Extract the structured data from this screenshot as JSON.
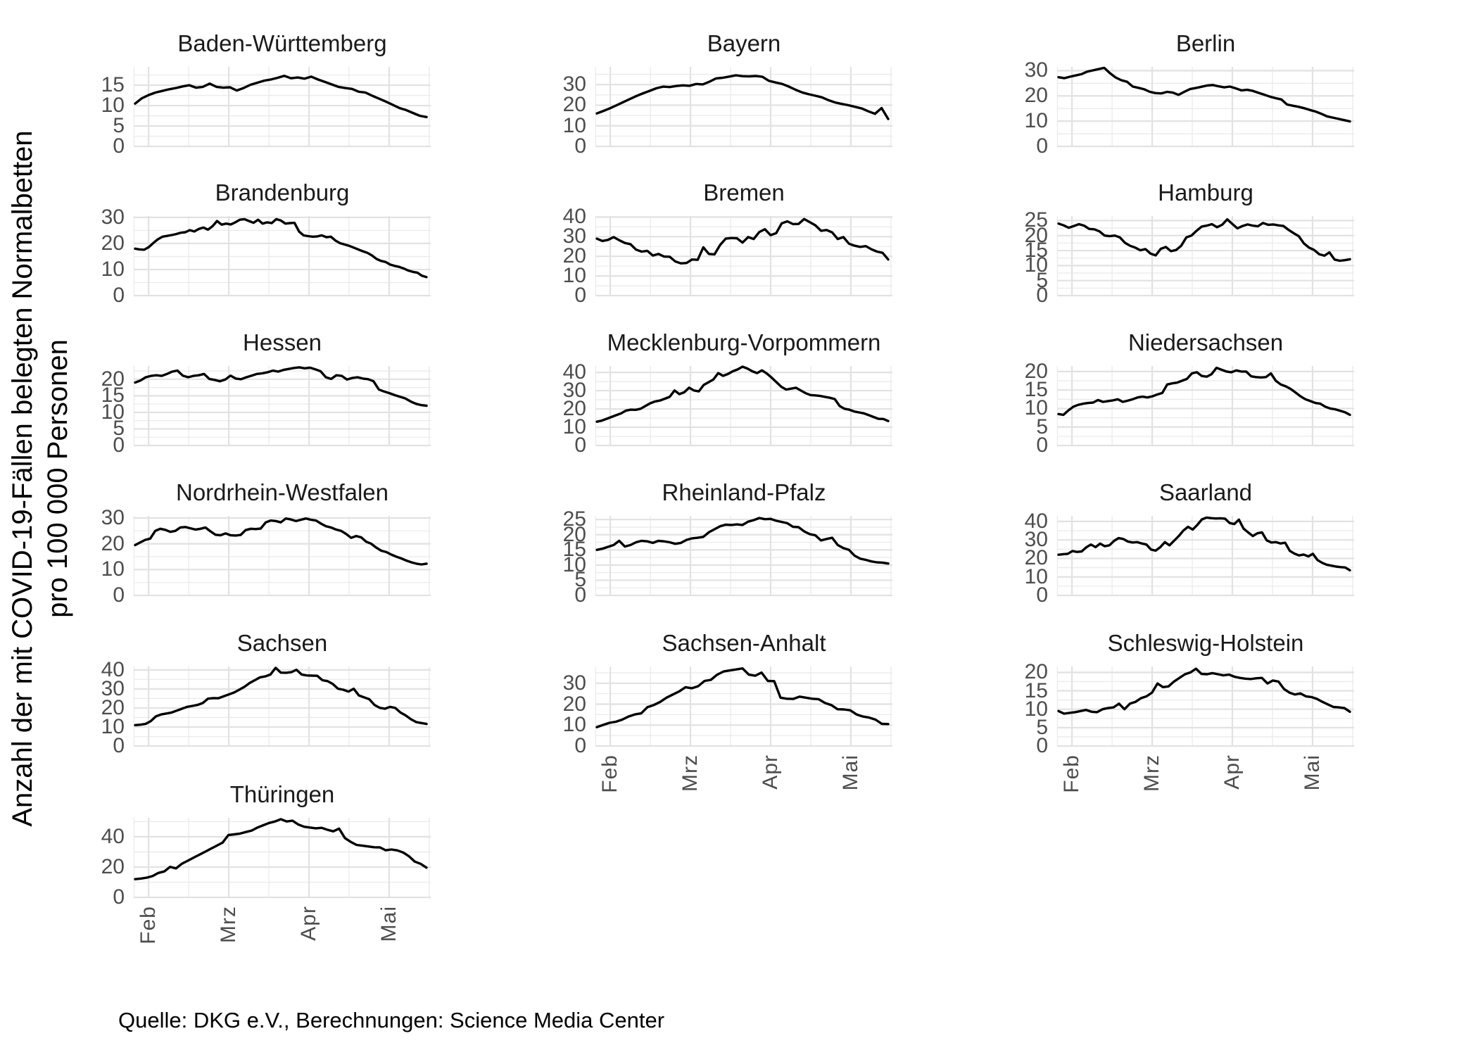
{
  "chart_data": {
    "type": "line",
    "layout": "facet_grid_3_columns",
    "ylabel_line1": "Anzahl der mit COVID-19-Fällen belegten Normalbetten",
    "ylabel_line2": "pro 100 000 Personen",
    "caption": "Quelle: DKG e.V., Berechnungen: Science Media Center",
    "x_tick_labels": [
      "Feb",
      "Mrz",
      "Apr",
      "Mai"
    ],
    "x_tick_pos": [
      0.05,
      0.32,
      0.59,
      0.86
    ],
    "x_minor_pos": [
      0.001,
      0.185,
      0.455,
      0.725,
      0.995
    ],
    "grid": "major_and_minor_light_gray",
    "legend": "none",
    "facets": [
      {
        "title": "Baden-Württemberg",
        "y_ticks": [
          0,
          5,
          10,
          15
        ],
        "y_max": 19.5,
        "values": [
          10.5,
          11.8,
          12.6,
          13.2,
          13.6,
          14.0,
          14.3,
          14.7,
          15.0,
          14.4,
          14.6,
          15.4,
          14.6,
          14.4,
          14.5,
          13.7,
          14.3,
          15.1,
          15.6,
          16.1,
          16.4,
          16.8,
          17.3,
          16.7,
          16.9,
          16.6,
          17.1,
          16.4,
          15.8,
          15.2,
          14.6,
          14.3,
          14.1,
          13.4,
          13.2,
          12.4,
          11.7,
          11.0,
          10.2,
          9.4,
          8.9,
          8.2,
          7.5,
          7.2
        ]
      },
      {
        "title": "Bayern",
        "y_ticks": [
          0,
          10,
          20,
          30
        ],
        "y_max": 38.6,
        "values": [
          16.0,
          17.2,
          18.5,
          20.0,
          21.5,
          23.0,
          24.5,
          25.8,
          27.0,
          28.2,
          29.0,
          28.8,
          29.3,
          29.6,
          29.4,
          30.3,
          30.1,
          31.4,
          33.0,
          33.3,
          33.9,
          34.5,
          34.1,
          34.0,
          34.2,
          33.8,
          31.8,
          31.0,
          30.3,
          29.0,
          27.5,
          26.2,
          25.3,
          24.6,
          23.8,
          22.4,
          21.3,
          20.6,
          20.0,
          19.2,
          18.4,
          17.0,
          15.8,
          18.6,
          13.3
        ]
      },
      {
        "title": "Berlin",
        "y_ticks": [
          0,
          10,
          20,
          30
        ],
        "y_max": 31.5,
        "values": [
          27.4,
          27.0,
          27.6,
          28.1,
          28.6,
          29.6,
          30.1,
          30.6,
          31.1,
          29.0,
          27.3,
          26.2,
          25.6,
          23.7,
          23.2,
          22.6,
          21.6,
          21.1,
          21.0,
          21.6,
          21.3,
          20.4,
          21.6,
          22.7,
          23.1,
          23.6,
          24.1,
          24.3,
          23.8,
          23.4,
          23.7,
          23.0,
          22.2,
          22.4,
          22.0,
          21.2,
          20.5,
          19.7,
          19.1,
          18.6,
          16.6,
          16.1,
          15.7,
          15.1,
          14.4,
          13.8,
          12.9,
          11.9,
          11.4,
          10.9,
          10.4,
          9.9
        ]
      },
      {
        "title": "Brandenburg",
        "y_ticks": [
          0,
          10,
          20,
          30
        ],
        "y_max": 30.5,
        "values": [
          18.0,
          17.7,
          17.6,
          18.6,
          20.2,
          21.6,
          22.6,
          22.9,
          23.2,
          23.6,
          24.1,
          24.3,
          25.1,
          24.6,
          25.6,
          26.1,
          25.3,
          26.6,
          28.6,
          27.2,
          27.6,
          27.3,
          28.1,
          29.1,
          29.3,
          28.6,
          27.9,
          29.1,
          27.6,
          28.1,
          27.8,
          29.3,
          28.8,
          27.6,
          27.8,
          27.9,
          24.6,
          23.1,
          22.8,
          22.6,
          22.7,
          23.1,
          22.4,
          22.6,
          21.1,
          20.1,
          19.6,
          19.1,
          18.4,
          17.7,
          17.0,
          16.4,
          15.4,
          14.1,
          13.3,
          12.9,
          11.9,
          11.4,
          11.0,
          10.4,
          9.6,
          9.1,
          8.8,
          7.6,
          7.1
        ]
      },
      {
        "title": "Bremen",
        "y_ticks": [
          0,
          10,
          20,
          30,
          40
        ],
        "y_max": 40.5,
        "values": [
          29.0,
          27.8,
          28.4,
          29.8,
          28.2,
          26.8,
          26.2,
          23.4,
          22.4,
          22.8,
          20.4,
          21.2,
          19.9,
          19.8,
          17.4,
          16.4,
          16.6,
          18.4,
          18.2,
          24.6,
          21.2,
          21.0,
          25.8,
          29.0,
          29.3,
          29.2,
          27.0,
          29.8,
          28.8,
          32.4,
          33.8,
          30.8,
          31.8,
          36.8,
          37.8,
          36.4,
          36.5,
          39.0,
          37.4,
          35.8,
          33.0,
          33.4,
          32.2,
          28.8,
          29.8,
          26.4,
          25.4,
          24.8,
          25.2,
          23.6,
          22.4,
          21.8,
          18.4
        ]
      },
      {
        "title": "Hamburg",
        "y_ticks": [
          0,
          5,
          10,
          15,
          20,
          25
        ],
        "y_max": 26.5,
        "values": [
          24.0,
          23.4,
          22.6,
          23.2,
          23.8,
          23.3,
          22.2,
          22.1,
          21.4,
          20.0,
          19.8,
          20.0,
          19.4,
          17.6,
          16.6,
          16.0,
          15.1,
          15.5,
          14.0,
          13.4,
          15.6,
          16.2,
          14.8,
          15.2,
          16.6,
          19.4,
          20.0,
          21.6,
          23.0,
          23.3,
          23.8,
          22.8,
          23.6,
          25.4,
          23.9,
          22.4,
          23.2,
          23.7,
          23.3,
          23.1,
          24.2,
          23.6,
          23.7,
          23.4,
          23.2,
          21.9,
          20.8,
          19.8,
          17.4,
          16.0,
          15.2,
          13.8,
          13.3,
          14.4,
          12.0,
          11.6,
          11.8,
          12.1
        ]
      },
      {
        "title": "Hessen",
        "y_ticks": [
          0,
          5,
          10,
          15,
          20
        ],
        "y_max": 24.0,
        "values": [
          19.0,
          19.6,
          20.6,
          21.0,
          21.2,
          21.0,
          21.6,
          22.3,
          22.6,
          21.1,
          20.6,
          21.0,
          21.2,
          21.6,
          20.1,
          19.8,
          19.4,
          19.9,
          21.1,
          20.2,
          20.0,
          20.6,
          21.1,
          21.6,
          21.8,
          22.1,
          22.6,
          22.3,
          22.8,
          23.1,
          23.4,
          23.6,
          23.3,
          23.5,
          23.0,
          22.4,
          20.6,
          20.1,
          21.2,
          21.0,
          19.9,
          20.4,
          20.6,
          20.2,
          20.0,
          19.4,
          16.9,
          16.3,
          15.8,
          15.2,
          14.7,
          14.2,
          13.3,
          12.6,
          12.2,
          12.0
        ]
      },
      {
        "title": "Mecklenburg-Vorpommern",
        "y_ticks": [
          0,
          10,
          20,
          30,
          40
        ],
        "y_max": 43.5,
        "values": [
          13.0,
          13.6,
          14.6,
          15.6,
          16.6,
          17.6,
          19.1,
          19.6,
          19.5,
          20.1,
          21.6,
          23.1,
          24.1,
          24.6,
          25.6,
          26.6,
          30.1,
          28.1,
          29.1,
          31.6,
          30.1,
          29.6,
          33.1,
          34.6,
          36.1,
          39.6,
          38.1,
          39.1,
          40.6,
          41.6,
          43.1,
          42.1,
          40.6,
          39.6,
          41.1,
          39.4,
          37.1,
          34.6,
          32.1,
          30.6,
          31.1,
          31.6,
          30.1,
          28.6,
          27.6,
          27.4,
          27.1,
          26.6,
          26.1,
          25.4,
          21.6,
          20.1,
          19.6,
          18.6,
          18.1,
          17.6,
          16.6,
          15.6,
          14.6,
          14.5,
          13.4
        ]
      },
      {
        "title": "Niedersachsen",
        "y_ticks": [
          0,
          5,
          10,
          15,
          20
        ],
        "y_max": 21.5,
        "values": [
          8.5,
          8.3,
          9.5,
          10.5,
          11.0,
          11.3,
          11.5,
          11.6,
          12.3,
          11.8,
          12.0,
          12.2,
          12.5,
          11.8,
          12.1,
          12.5,
          13.0,
          13.2,
          13.0,
          13.3,
          13.8,
          14.2,
          16.5,
          16.8,
          17.0,
          17.5,
          18.0,
          19.5,
          19.8,
          18.8,
          18.6,
          19.3,
          21.0,
          20.5,
          20.0,
          19.8,
          20.3,
          20.0,
          20.0,
          18.7,
          18.5,
          18.4,
          18.5,
          19.5,
          17.5,
          16.5,
          16.0,
          15.3,
          14.3,
          13.3,
          12.5,
          12.0,
          11.5,
          11.3,
          10.5,
          10.0,
          9.8,
          9.4,
          9.0,
          8.3
        ]
      },
      {
        "title": "Nordrhein-Westfalen",
        "y_ticks": [
          0,
          10,
          20,
          30
        ],
        "y_max": 30.8,
        "values": [
          19.5,
          20.5,
          21.5,
          22.0,
          25.0,
          25.8,
          25.4,
          24.6,
          25.0,
          26.3,
          26.5,
          26.0,
          25.5,
          25.8,
          26.3,
          24.8,
          23.5,
          23.3,
          24.0,
          23.3,
          23.2,
          23.4,
          25.3,
          25.8,
          25.7,
          25.9,
          28.3,
          29.0,
          28.8,
          28.3,
          29.8,
          29.4,
          28.8,
          29.3,
          29.8,
          29.3,
          29.0,
          27.8,
          26.8,
          26.3,
          25.5,
          25.0,
          23.8,
          22.3,
          23.0,
          22.5,
          20.8,
          20.0,
          18.5,
          17.3,
          16.8,
          15.8,
          15.0,
          14.3,
          13.5,
          12.8,
          12.3,
          12.0,
          12.3
        ]
      },
      {
        "title": "Rheinland-Pfalz",
        "y_ticks": [
          0,
          5,
          10,
          15,
          20,
          25
        ],
        "y_max": 26.2,
        "values": [
          15.0,
          15.4,
          16.0,
          16.6,
          18.0,
          16.1,
          16.6,
          17.5,
          18.0,
          17.8,
          17.3,
          18.0,
          17.8,
          17.5,
          17.0,
          17.3,
          18.3,
          18.8,
          19.0,
          19.3,
          20.8,
          21.8,
          22.8,
          23.3,
          23.2,
          23.4,
          23.2,
          24.3,
          24.8,
          25.5,
          25.1,
          25.2,
          24.6,
          24.2,
          23.8,
          22.6,
          22.5,
          21.1,
          20.2,
          19.8,
          18.1,
          18.6,
          19.0,
          16.6,
          15.6,
          15.0,
          13.1,
          12.1,
          11.7,
          11.2,
          10.9,
          10.8,
          10.5
        ]
      },
      {
        "title": "Saarland",
        "y_ticks": [
          0,
          10,
          20,
          30,
          40
        ],
        "y_max": 43.0,
        "values": [
          22.0,
          22.3,
          22.5,
          24.0,
          23.5,
          23.8,
          26.0,
          27.5,
          26.1,
          28.0,
          26.6,
          27.1,
          29.5,
          31.0,
          30.5,
          29.1,
          28.6,
          28.8,
          28.1,
          27.5,
          24.8,
          24.2,
          26.1,
          28.8,
          27.1,
          29.6,
          32.1,
          35.1,
          37.1,
          35.6,
          38.1,
          41.1,
          42.1,
          41.8,
          41.6,
          41.7,
          41.5,
          39.1,
          38.6,
          41.0,
          36.1,
          34.1,
          32.1,
          33.6,
          34.1,
          29.8,
          28.6,
          28.8,
          28.1,
          28.5,
          24.1,
          22.6,
          21.6,
          22.1,
          21.1,
          22.5,
          19.1,
          17.6,
          16.6,
          16.1,
          15.6,
          15.3,
          15.1,
          13.6
        ]
      },
      {
        "title": "Sachsen",
        "y_ticks": [
          0,
          10,
          20,
          30,
          40
        ],
        "y_max": 41.8,
        "values": [
          11.0,
          11.2,
          11.6,
          13.1,
          15.6,
          16.6,
          17.1,
          17.6,
          18.6,
          19.6,
          20.6,
          21.1,
          21.6,
          22.6,
          24.9,
          25.2,
          25.1,
          26.1,
          27.1,
          28.1,
          29.6,
          31.1,
          33.1,
          34.6,
          36.1,
          36.6,
          37.6,
          41.1,
          38.6,
          38.5,
          38.8,
          40.1,
          37.6,
          37.1,
          37.0,
          36.9,
          34.6,
          34.1,
          32.6,
          30.1,
          29.6,
          28.6,
          30.1,
          26.6,
          25.6,
          24.6,
          21.6,
          20.1,
          19.6,
          20.6,
          20.0,
          17.6,
          16.1,
          14.1,
          12.6,
          12.1,
          11.6
        ]
      },
      {
        "title": "Sachsen-Anhalt",
        "y_ticks": [
          0,
          10,
          20,
          30
        ],
        "y_max": 38.0,
        "values": [
          9.0,
          10.1,
          11.1,
          11.6,
          12.6,
          14.1,
          15.1,
          15.6,
          18.6,
          19.6,
          21.1,
          23.1,
          24.6,
          26.1,
          28.1,
          27.6,
          28.6,
          31.1,
          31.6,
          34.1,
          35.6,
          36.1,
          36.6,
          37.1,
          34.1,
          33.6,
          35.1,
          31.1,
          31.0,
          23.1,
          22.6,
          22.5,
          23.6,
          23.1,
          22.6,
          22.4,
          20.6,
          19.6,
          17.6,
          17.5,
          17.1,
          15.1,
          14.1,
          13.6,
          12.6,
          10.6,
          10.5
        ]
      },
      {
        "title": "Schleswig-Holstein",
        "y_ticks": [
          0,
          5,
          10,
          15,
          20
        ],
        "y_max": 21.6,
        "values": [
          9.5,
          8.8,
          9.0,
          9.2,
          9.5,
          9.8,
          9.3,
          9.2,
          10.0,
          10.3,
          10.5,
          11.5,
          10.0,
          11.5,
          12.0,
          13.0,
          13.5,
          14.5,
          17.0,
          16.0,
          16.2,
          17.5,
          18.5,
          19.5,
          20.0,
          21.0,
          19.6,
          19.5,
          19.8,
          19.5,
          19.2,
          19.4,
          18.8,
          18.5,
          18.3,
          18.2,
          18.4,
          18.5,
          17.0,
          17.8,
          17.5,
          15.5,
          14.5,
          14.0,
          14.3,
          13.5,
          13.3,
          12.8,
          12.0,
          11.3,
          10.6,
          10.5,
          10.3,
          9.3
        ]
      },
      {
        "title": "Thüringen",
        "y_ticks": [
          0,
          20,
          40
        ],
        "y_max": 52.5,
        "values": [
          12.0,
          12.4,
          13.0,
          14.1,
          16.1,
          17.1,
          20.1,
          19.1,
          22.1,
          24.1,
          26.1,
          28.1,
          30.1,
          32.1,
          34.1,
          36.1,
          41.1,
          41.6,
          42.1,
          43.1,
          44.1,
          46.1,
          47.6,
          49.1,
          50.1,
          51.6,
          50.1,
          50.6,
          48.1,
          46.6,
          46.1,
          45.6,
          45.9,
          44.6,
          43.6,
          45.4,
          39.1,
          36.6,
          34.6,
          34.1,
          33.6,
          33.1,
          33.0,
          31.1,
          31.6,
          31.0,
          29.6,
          27.1,
          23.6,
          22.1,
          19.6
        ]
      }
    ],
    "colors": {
      "line": "#000000",
      "grid_major": "#e2e2e2",
      "grid_minor": "#ebebeb",
      "tick_label": "#4d4d4d",
      "facet_title": "#1a1a1a"
    }
  }
}
